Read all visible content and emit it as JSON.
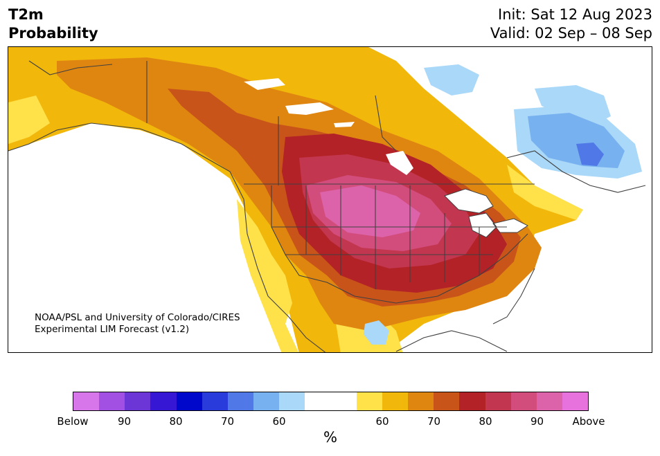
{
  "header": {
    "title_line1": "T2m",
    "title_line2": "Probability",
    "init": "Init: Sat 12 Aug 2023",
    "valid": "Valid: 02 Sep – 08 Sep"
  },
  "map": {
    "credit_line1": "NOAA/PSL and University of Colorado/CIRES",
    "credit_line2": "Experimental LIM Forecast (v1.2)",
    "colors": {
      "above_60": "#ffe14a",
      "above_65": "#f2b70b",
      "above_70": "#df8610",
      "above_75": "#c9541a",
      "above_80": "#b32227",
      "above_85": "#c3364f",
      "above_90": "#d24d7b",
      "above_95": "#dc63a9",
      "below_60": "#aad8f8",
      "below_65": "#77b1ef",
      "below_70": "#5078e6",
      "lakes": "#ffffff",
      "borders": "#404040"
    }
  },
  "colorbar": {
    "colors": [
      "#d776ea",
      "#a24fe3",
      "#6c36d6",
      "#3618d4",
      "#0008cc",
      "#2a3bdb",
      "#5078e6",
      "#77b1ef",
      "#aad8f8",
      "#ffffff",
      "#ffffff",
      "#ffe14a",
      "#f2b70b",
      "#df8610",
      "#c9541a",
      "#b32227",
      "#c3364f",
      "#d24d7b",
      "#dc63a9",
      "#e772de"
    ],
    "tick_labels": [
      "Below",
      "90",
      "80",
      "70",
      "60",
      "60",
      "70",
      "80",
      "90",
      "Above"
    ],
    "unit_label": "%"
  }
}
